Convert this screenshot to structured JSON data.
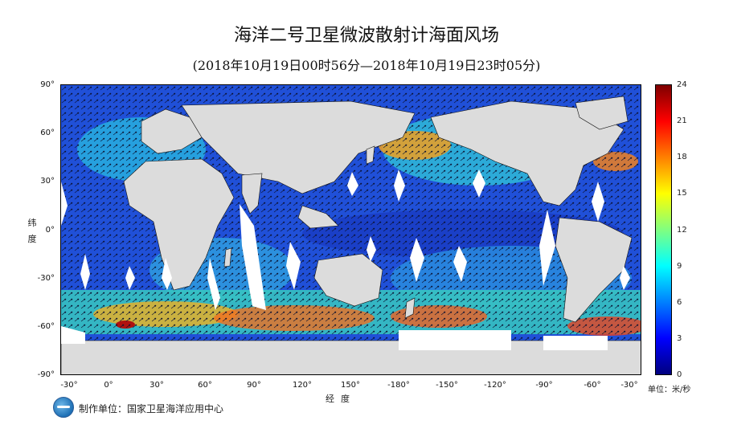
{
  "title": "海洋二号卫星微波散射计海面风场",
  "subtitle": "(2018年10月19日00时56分—2018年10月19日23时05分)",
  "axes": {
    "y_label": "纬度",
    "x_label": "经度",
    "lat_ticks": [
      "90°",
      "60°",
      "30°",
      "0°",
      "-30°",
      "-60°",
      "-90°"
    ],
    "lon_ticks": [
      "-30°",
      "0°",
      "30°",
      "60°",
      "90°",
      "120°",
      "150°",
      "-180°",
      "-150°",
      "-120°",
      "-90°",
      "-60°",
      "-30°"
    ]
  },
  "colorbar": {
    "ticks": [
      "24",
      "21",
      "18",
      "15",
      "12",
      "9",
      "6",
      "3",
      "0"
    ],
    "unit": "单位：米/秒",
    "colors": [
      "#00007f",
      "#0000ff",
      "#0080ff",
      "#00ffff",
      "#80ff80",
      "#ffff00",
      "#ff8000",
      "#ff0000",
      "#7f0000"
    ]
  },
  "producer": "制作单位：国家卫星海洋应用中心",
  "icons": {
    "logo": "nsoas-logo-icon"
  },
  "palette": {
    "land": "#dcdcdc",
    "gap": "#ffffff",
    "ocean_base": "#1e4fd0"
  }
}
